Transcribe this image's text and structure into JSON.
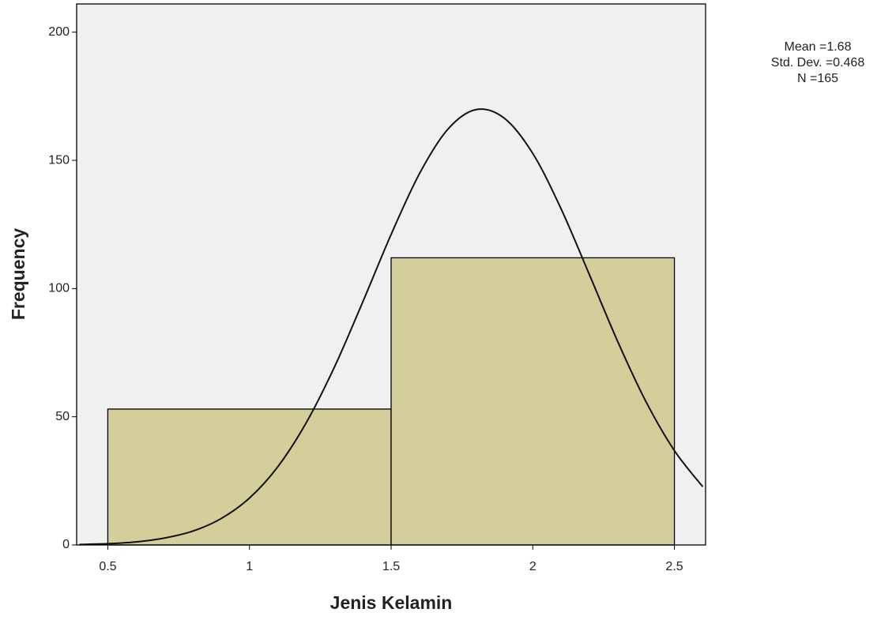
{
  "chart_data": {
    "type": "histogram",
    "x_label": "Jenis Kelamin",
    "y_label": "Frequency",
    "bins": [
      0.5,
      1.5,
      2.5
    ],
    "values": [
      53,
      112
    ],
    "color": "#d3ce9a",
    "xlim": [
      0.39,
      2.61
    ],
    "xticks": [
      0.5,
      1,
      1.5,
      2,
      2.5
    ],
    "ylim": [
      0,
      211
    ],
    "yticks": [
      0,
      50,
      100,
      150,
      200
    ],
    "normal_curve": {
      "x": [
        0.4,
        0.5,
        0.6,
        0.7,
        0.8,
        0.9,
        1.0,
        1.1,
        1.2,
        1.3,
        1.4,
        1.5,
        1.6,
        1.7,
        1.8,
        1.9,
        2.0,
        2.1,
        2.2,
        2.3,
        2.4,
        2.5,
        2.6
      ],
      "values": [
        0.2,
        0.5,
        1.2,
        2.7,
        5.4,
        10.3,
        18.3,
        30.5,
        47.6,
        69.4,
        94.8,
        121.1,
        144.8,
        162.1,
        169.8,
        166.4,
        152.7,
        131.1,
        105.4,
        79.3,
        55.8,
        36.8,
        22.7
      ]
    },
    "annotations": [
      "Mean =1.68",
      "Std. Dev. =0.468",
      "N =165"
    ]
  }
}
